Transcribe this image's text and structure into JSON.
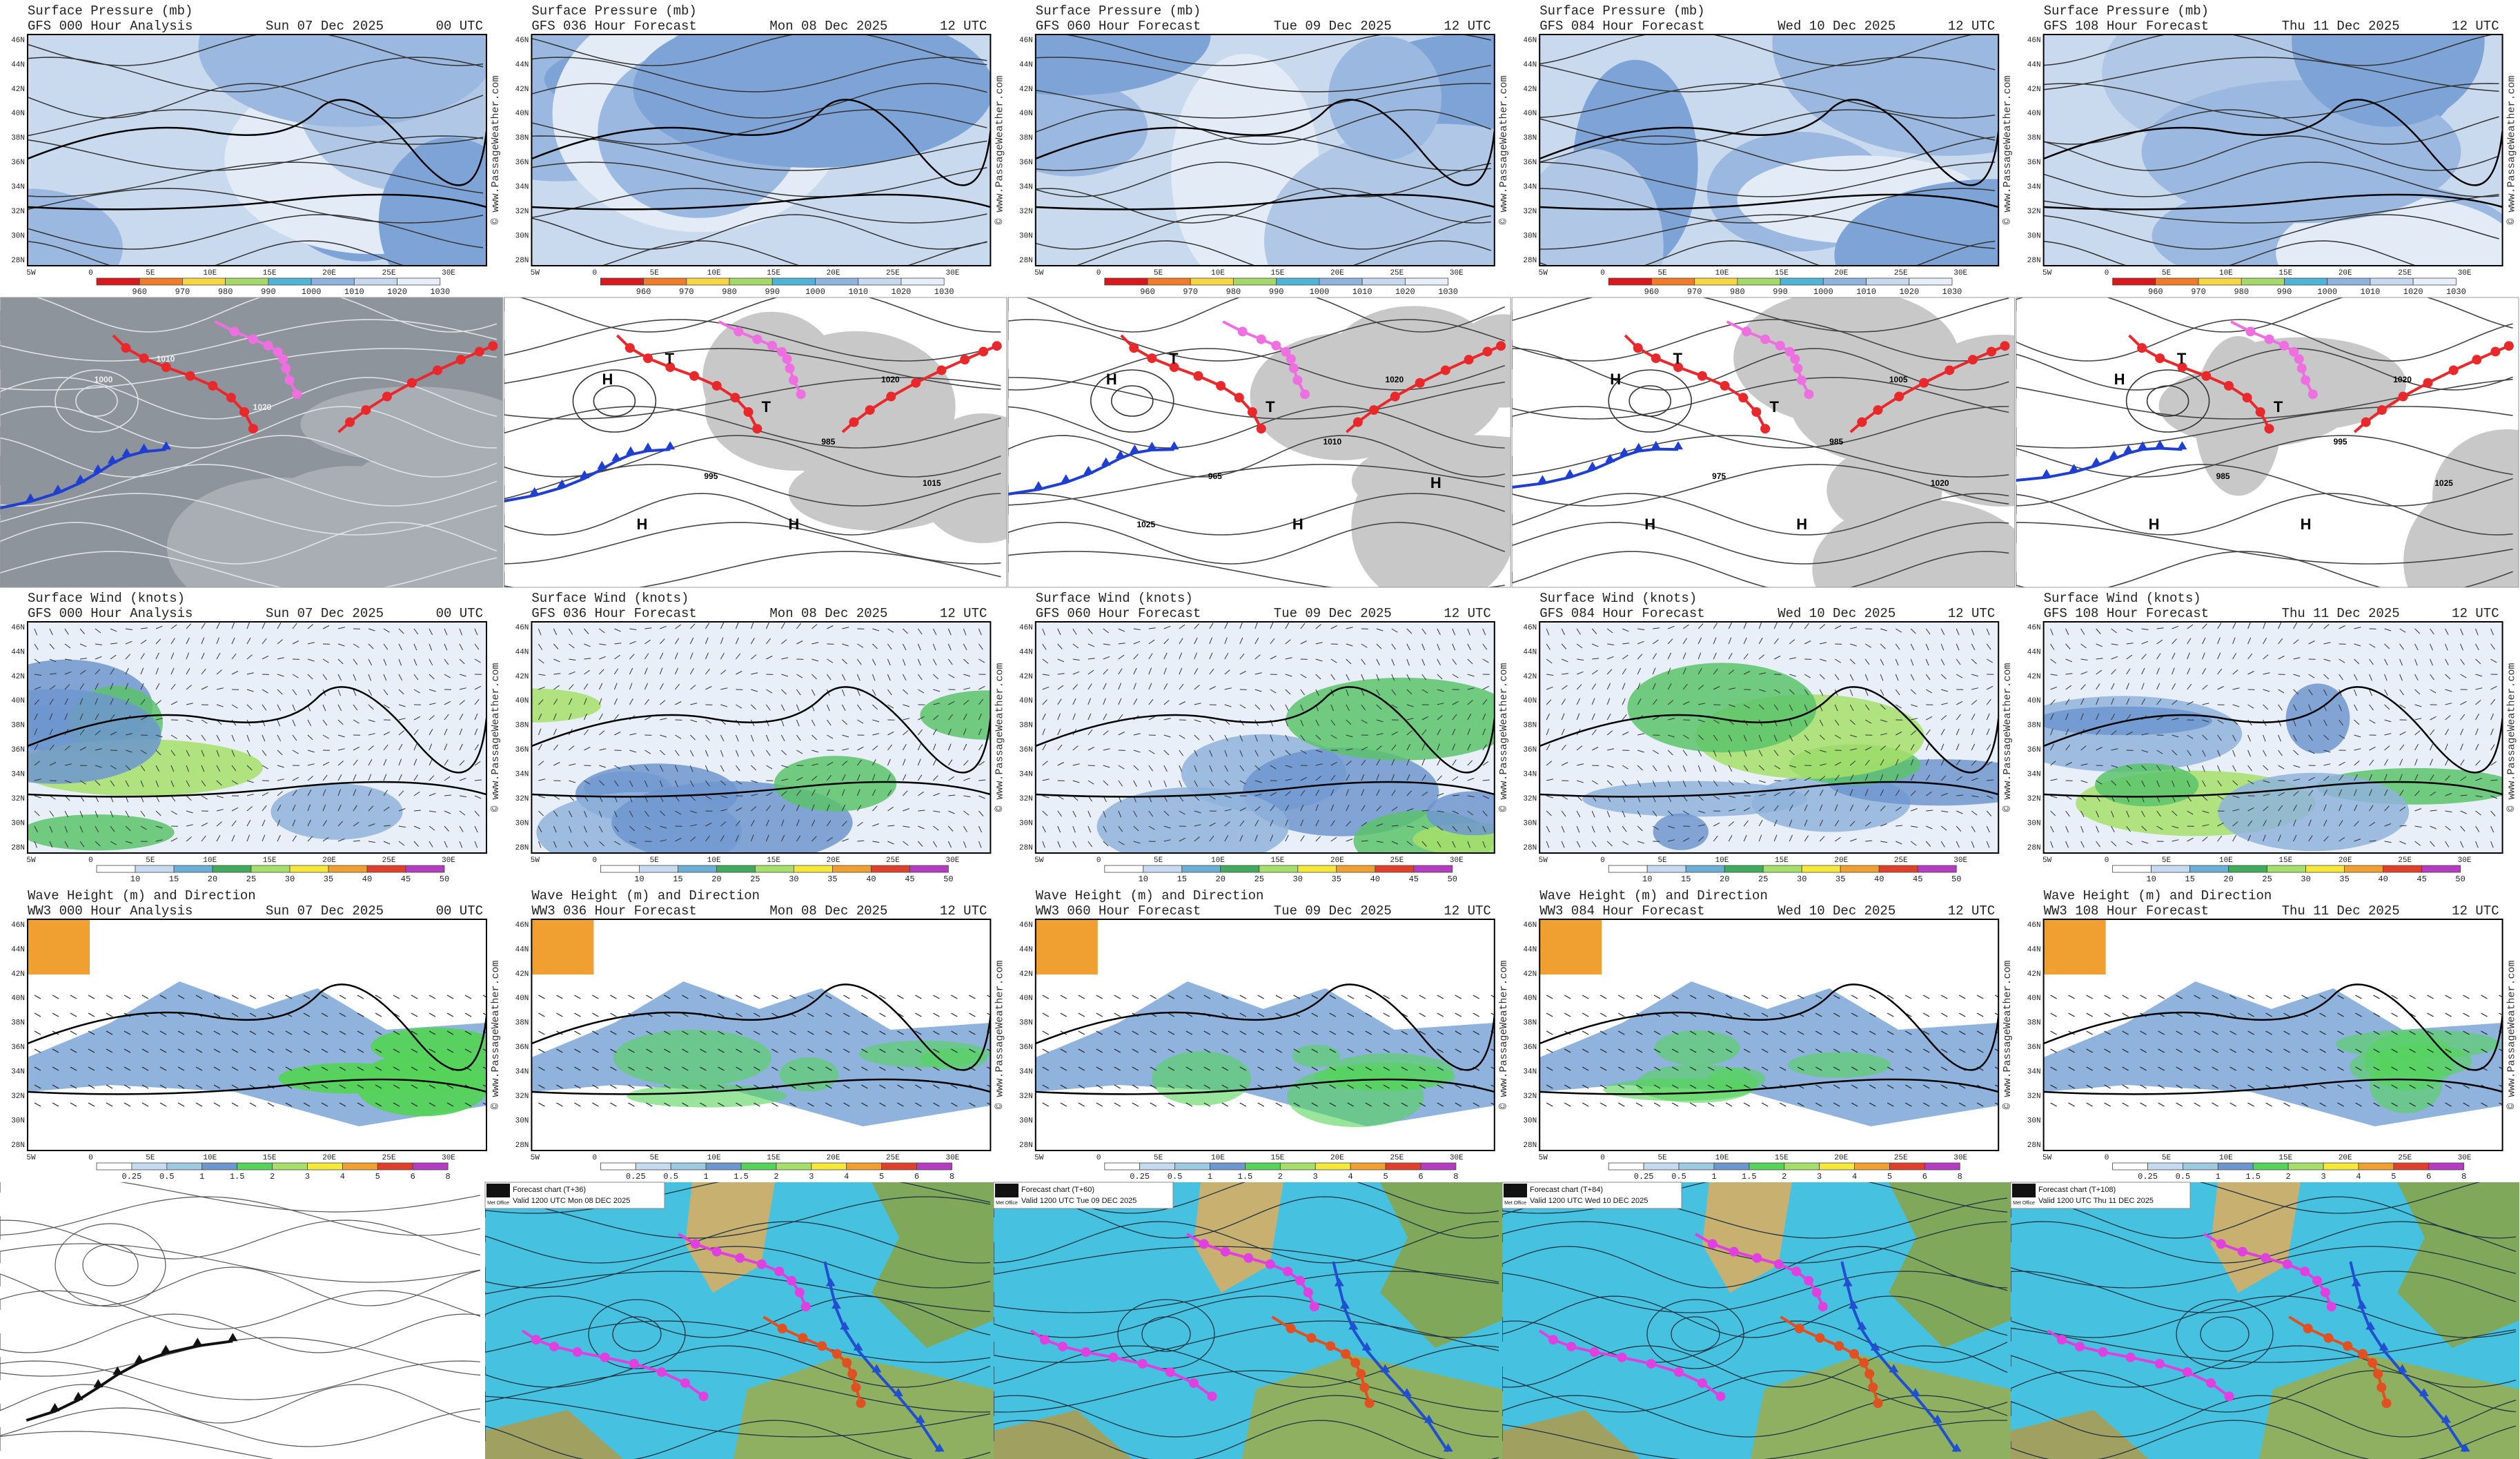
{
  "valid": [
    {
      "date": "Sun 07 Dec 2025",
      "time": "00 UTC"
    },
    {
      "date": "Mon 08 Dec 2025",
      "time": "12 UTC"
    },
    {
      "date": "Tue 09 Dec 2025",
      "time": "12 UTC"
    },
    {
      "date": "Wed 10 Dec 2025",
      "time": "12 UTC"
    },
    {
      "date": "Thu 11 Dec 2025",
      "time": "12 UTC"
    }
  ],
  "lat_labels": [
    "46N",
    "44N",
    "42N",
    "40N",
    "38N",
    "36N",
    "34N",
    "32N",
    "30N",
    "28N"
  ],
  "lon_labels": [
    "5W",
    "0",
    "5E",
    "10E",
    "15E",
    "20E",
    "25E",
    "30E"
  ],
  "watermark": "© www.PassageWeather.com",
  "panel_rows": [
    {
      "title": "Surface Pressure (mb)",
      "subtitles": [
        "GFS 000 Hour Analysis",
        "GFS 036 Hour Forecast",
        "GFS 060 Hour Forecast",
        "GFS 084 Hour Forecast",
        "GFS 108 Hour Forecast"
      ],
      "colorbar": [
        960,
        970,
        980,
        990,
        1000,
        1010,
        1020,
        1030
      ]
    },
    {
      "title": "Surface Wind (knots)",
      "subtitles": [
        "GFS 000 Hour Analysis",
        "GFS 036 Hour Forecast",
        "GFS 060 Hour Forecast",
        "GFS 084 Hour Forecast",
        "GFS 108 Hour Forecast"
      ],
      "colorbar": [
        10,
        15,
        20,
        25,
        30,
        35,
        40,
        45,
        50
      ]
    },
    {
      "title": "Wave Height (m) and Direction",
      "subtitles": [
        "WW3 000 Hour Analysis",
        "WW3 036 Hour Forecast",
        "WW3 060 Hour Forecast",
        "WW3 084 Hour Forecast",
        "WW3 108 Hour Forecast"
      ],
      "colorbar": [
        0.25,
        0.5,
        1,
        1.5,
        2,
        3,
        4,
        5,
        6,
        8
      ]
    }
  ],
  "analysis_charts": [
    {
      "labels": [
        "1000",
        "1010",
        "1020"
      ]
    },
    {
      "labels": [
        "H",
        "T",
        "T",
        "995",
        "985",
        "1020",
        "1015",
        "H",
        "H"
      ]
    },
    {
      "labels": [
        "H",
        "T",
        "T",
        "965",
        "1010",
        "1020",
        "H",
        "H",
        "1025"
      ]
    },
    {
      "labels": [
        "H",
        "T",
        "T",
        "975",
        "985",
        "1005",
        "1020",
        "H",
        "H"
      ]
    },
    {
      "labels": [
        "H",
        "T",
        "T",
        "985",
        "995",
        "1020",
        "1025",
        "H",
        "H"
      ]
    }
  ],
  "metoffice": {
    "logo": "Met Office",
    "panels": [
      {
        "title": "Forecast chart (T+36)",
        "valid": "Valid 1200 UTC Mon 08 DEC 2025"
      },
      {
        "title": "Forecast chart (T+60)",
        "valid": "Valid 1200 UTC Tue 09 DEC 2025"
      },
      {
        "title": "Forecast chart (T+84)",
        "valid": "Valid 1200 UTC Wed 10 DEC 2025"
      },
      {
        "title": "Forecast chart (T+108)",
        "valid": "Valid 1200 UTC Thu 11 DEC 2025"
      }
    ]
  }
}
